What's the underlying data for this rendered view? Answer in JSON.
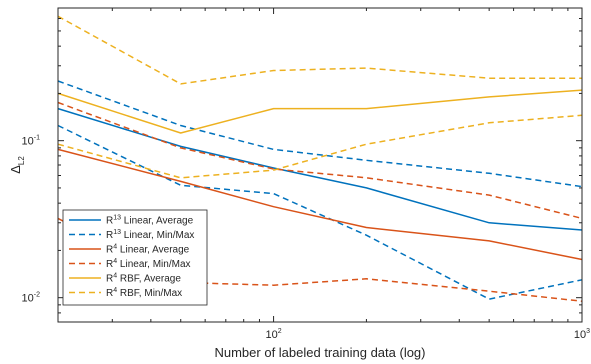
{
  "chart_data": {
    "type": "line",
    "xscale": "log",
    "yscale": "log",
    "xlim": [
      20,
      1000
    ],
    "ylim": [
      0.007,
      0.7
    ],
    "xlabel": "Number of labeled training data (log)",
    "ylabel": {
      "main": "Δ",
      "sub": "L2"
    },
    "xticks": [
      {
        "value": 100,
        "base": "10",
        "exp": "2"
      },
      {
        "value": 1000,
        "base": "10",
        "exp": "3"
      }
    ],
    "yticks": [
      {
        "value": 0.01,
        "base": "10",
        "exp": "-2"
      },
      {
        "value": 0.1,
        "base": "10",
        "exp": "-1"
      }
    ],
    "legend_position": "bottom-left",
    "series": [
      {
        "name": "R13 Linear, Average",
        "label_base": "R",
        "label_sup": "13",
        "label_rest": " Linear, Average",
        "color": "#0072BD",
        "dash": "solid",
        "x": [
          20,
          50,
          100,
          200,
          500,
          1000
        ],
        "y": [
          0.16,
          0.092,
          0.067,
          0.05,
          0.03,
          0.027
        ]
      },
      {
        "name": "R13 Linear, Min",
        "color": "#0072BD",
        "dash": "dashed",
        "legend": false,
        "x": [
          20,
          50,
          100,
          200,
          500,
          1000
        ],
        "y": [
          0.125,
          0.052,
          0.046,
          0.025,
          0.0098,
          0.013
        ]
      },
      {
        "name": "R13 Linear, Max",
        "label_base": "R",
        "label_sup": "13",
        "label_rest": " Linear, Min/Max",
        "color": "#0072BD",
        "dash": "dashed",
        "x": [
          20,
          50,
          100,
          200,
          500,
          1000
        ],
        "y": [
          0.24,
          0.125,
          0.088,
          0.075,
          0.062,
          0.051
        ]
      },
      {
        "name": "R4 Linear, Average",
        "label_base": "R",
        "label_sup": "4",
        "label_rest": " Linear, Average",
        "color": "#D95319",
        "dash": "solid",
        "x": [
          20,
          50,
          100,
          200,
          500,
          1000
        ],
        "y": [
          0.088,
          0.055,
          0.038,
          0.028,
          0.023,
          0.0175
        ]
      },
      {
        "name": "R4 Linear, Min",
        "color": "#D95319",
        "dash": "dashed",
        "legend": false,
        "x": [
          20,
          50,
          100,
          200,
          500,
          1000
        ],
        "y": [
          0.032,
          0.0125,
          0.012,
          0.0132,
          0.011,
          0.0095
        ]
      },
      {
        "name": "R4 Linear, Max",
        "label_base": "R",
        "label_sup": "4",
        "label_rest": " Linear, Min/Max",
        "color": "#D95319",
        "dash": "dashed",
        "x": [
          20,
          50,
          100,
          200,
          500,
          1000
        ],
        "y": [
          0.175,
          0.09,
          0.066,
          0.058,
          0.045,
          0.032
        ]
      },
      {
        "name": "R4 RBF, Average",
        "label_base": "R",
        "label_sup": "4",
        "label_rest": " RBF, Average",
        "color": "#EDB120",
        "dash": "solid",
        "x": [
          20,
          50,
          100,
          200,
          500,
          1000
        ],
        "y": [
          0.2,
          0.112,
          0.16,
          0.16,
          0.19,
          0.21
        ]
      },
      {
        "name": "R4 RBF, Min",
        "color": "#EDB120",
        "dash": "dashed",
        "legend": false,
        "x": [
          20,
          50,
          100,
          200,
          500,
          1000
        ],
        "y": [
          0.095,
          0.058,
          0.065,
          0.095,
          0.13,
          0.145
        ]
      },
      {
        "name": "R4 RBF, Max",
        "label_base": "R",
        "label_sup": "4",
        "label_rest": " RBF, Min/Max",
        "color": "#EDB120",
        "dash": "dashed",
        "x": [
          20,
          50,
          100,
          200,
          500,
          1000
        ],
        "y": [
          0.62,
          0.23,
          0.28,
          0.29,
          0.25,
          0.25
        ]
      }
    ]
  }
}
